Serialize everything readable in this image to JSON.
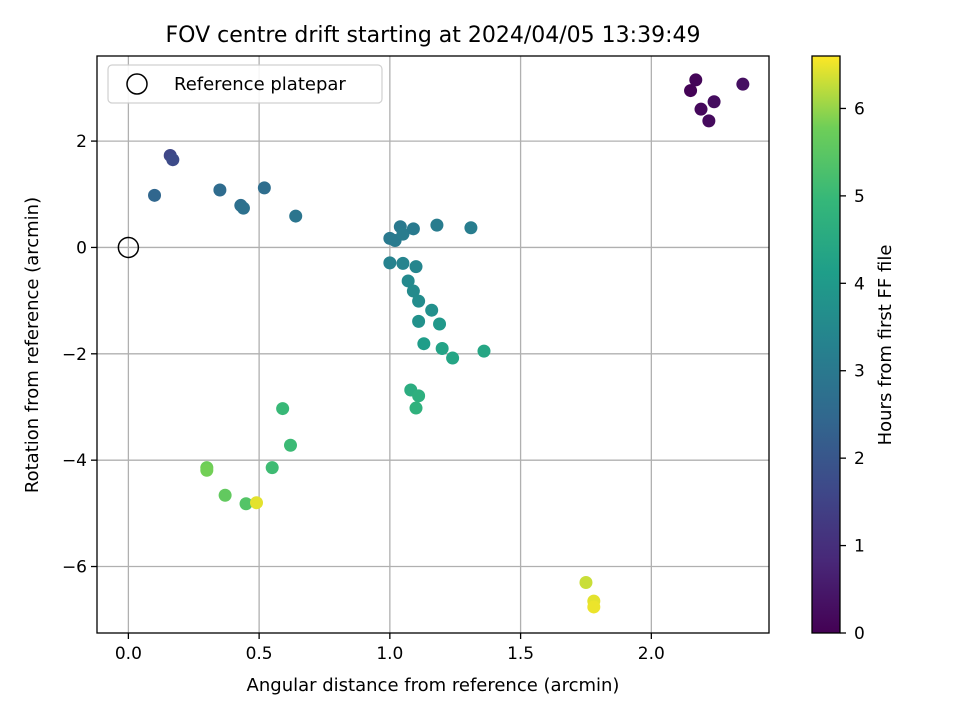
{
  "chart_data": {
    "type": "scatter",
    "title": "FOV centre drift starting at 2024/04/05 13:39:49",
    "xlabel": "Angular distance from reference (arcmin)",
    "ylabel": "Rotation from reference (arcmin)",
    "xlim": [
      -0.12,
      2.45
    ],
    "ylim": [
      -7.25,
      3.6
    ],
    "xticks": [
      0.0,
      0.5,
      1.0,
      1.5,
      2.0
    ],
    "xtick_labels": [
      "0.0",
      "0.5",
      "1.0",
      "1.5",
      "2.0"
    ],
    "yticks": [
      -6,
      -4,
      -2,
      0,
      2
    ],
    "ytick_labels": [
      "−6",
      "−4",
      "−2",
      "0",
      "2"
    ],
    "grid": true,
    "colormap": "viridis",
    "colorbar": {
      "label": "Hours from first FF file",
      "range": [
        0,
        6.6
      ],
      "ticks": [
        0,
        1,
        2,
        3,
        4,
        5,
        6
      ],
      "tick_labels": [
        "0",
        "1",
        "2",
        "3",
        "4",
        "5",
        "6"
      ]
    },
    "legend": {
      "placement": "top-left",
      "entries": [
        "Reference platepar"
      ]
    },
    "reference_point": {
      "x": 0.0,
      "y": 0.0
    },
    "points": [
      {
        "x": 2.15,
        "y": 2.95,
        "c": 0.05
      },
      {
        "x": 2.17,
        "y": 3.15,
        "c": 0.1
      },
      {
        "x": 2.19,
        "y": 2.6,
        "c": 0.15
      },
      {
        "x": 2.22,
        "y": 2.38,
        "c": 0.2
      },
      {
        "x": 2.24,
        "y": 2.74,
        "c": 0.25
      },
      {
        "x": 2.35,
        "y": 3.07,
        "c": 0.3
      },
      {
        "x": 0.16,
        "y": 1.73,
        "c": 1.6
      },
      {
        "x": 0.17,
        "y": 1.65,
        "c": 1.7
      },
      {
        "x": 0.1,
        "y": 0.98,
        "c": 2.45
      },
      {
        "x": 0.35,
        "y": 1.08,
        "c": 2.6
      },
      {
        "x": 0.43,
        "y": 0.79,
        "c": 2.7
      },
      {
        "x": 0.44,
        "y": 0.74,
        "c": 2.75
      },
      {
        "x": 0.52,
        "y": 1.12,
        "c": 2.65
      },
      {
        "x": 0.64,
        "y": 0.59,
        "c": 2.9
      },
      {
        "x": 1.0,
        "y": 0.17,
        "c": 3.0
      },
      {
        "x": 1.02,
        "y": 0.13,
        "c": 3.05
      },
      {
        "x": 1.04,
        "y": 0.39,
        "c": 3.0
      },
      {
        "x": 1.05,
        "y": 0.25,
        "c": 3.1
      },
      {
        "x": 1.09,
        "y": 0.35,
        "c": 3.05
      },
      {
        "x": 1.18,
        "y": 0.42,
        "c": 3.1
      },
      {
        "x": 1.31,
        "y": 0.37,
        "c": 3.15
      },
      {
        "x": 1.0,
        "y": -0.29,
        "c": 3.3
      },
      {
        "x": 1.05,
        "y": -0.3,
        "c": 3.35
      },
      {
        "x": 1.1,
        "y": -0.36,
        "c": 3.4
      },
      {
        "x": 1.07,
        "y": -0.63,
        "c": 3.5
      },
      {
        "x": 1.09,
        "y": -0.82,
        "c": 3.55
      },
      {
        "x": 1.11,
        "y": -1.01,
        "c": 3.6
      },
      {
        "x": 1.16,
        "y": -1.18,
        "c": 3.7
      },
      {
        "x": 1.11,
        "y": -1.39,
        "c": 3.75
      },
      {
        "x": 1.19,
        "y": -1.44,
        "c": 3.95
      },
      {
        "x": 1.13,
        "y": -1.81,
        "c": 4.1
      },
      {
        "x": 1.2,
        "y": -1.9,
        "c": 4.3
      },
      {
        "x": 1.24,
        "y": -2.08,
        "c": 4.35
      },
      {
        "x": 1.36,
        "y": -1.95,
        "c": 4.4
      },
      {
        "x": 1.08,
        "y": -2.68,
        "c": 4.6
      },
      {
        "x": 1.11,
        "y": -2.79,
        "c": 4.7
      },
      {
        "x": 1.1,
        "y": -3.02,
        "c": 4.75
      },
      {
        "x": 0.59,
        "y": -3.03,
        "c": 5.0
      },
      {
        "x": 0.62,
        "y": -3.72,
        "c": 5.05
      },
      {
        "x": 0.55,
        "y": -4.14,
        "c": 5.1
      },
      {
        "x": 0.3,
        "y": -4.14,
        "c": 5.75
      },
      {
        "x": 0.3,
        "y": -4.19,
        "c": 5.8
      },
      {
        "x": 0.37,
        "y": -4.66,
        "c": 5.6
      },
      {
        "x": 0.45,
        "y": -4.82,
        "c": 5.4
      },
      {
        "x": 0.49,
        "y": -4.8,
        "c": 6.45
      },
      {
        "x": 1.75,
        "y": -6.3,
        "c": 6.3
      },
      {
        "x": 1.78,
        "y": -6.65,
        "c": 6.45
      },
      {
        "x": 1.78,
        "y": -6.76,
        "c": 6.5
      }
    ]
  }
}
